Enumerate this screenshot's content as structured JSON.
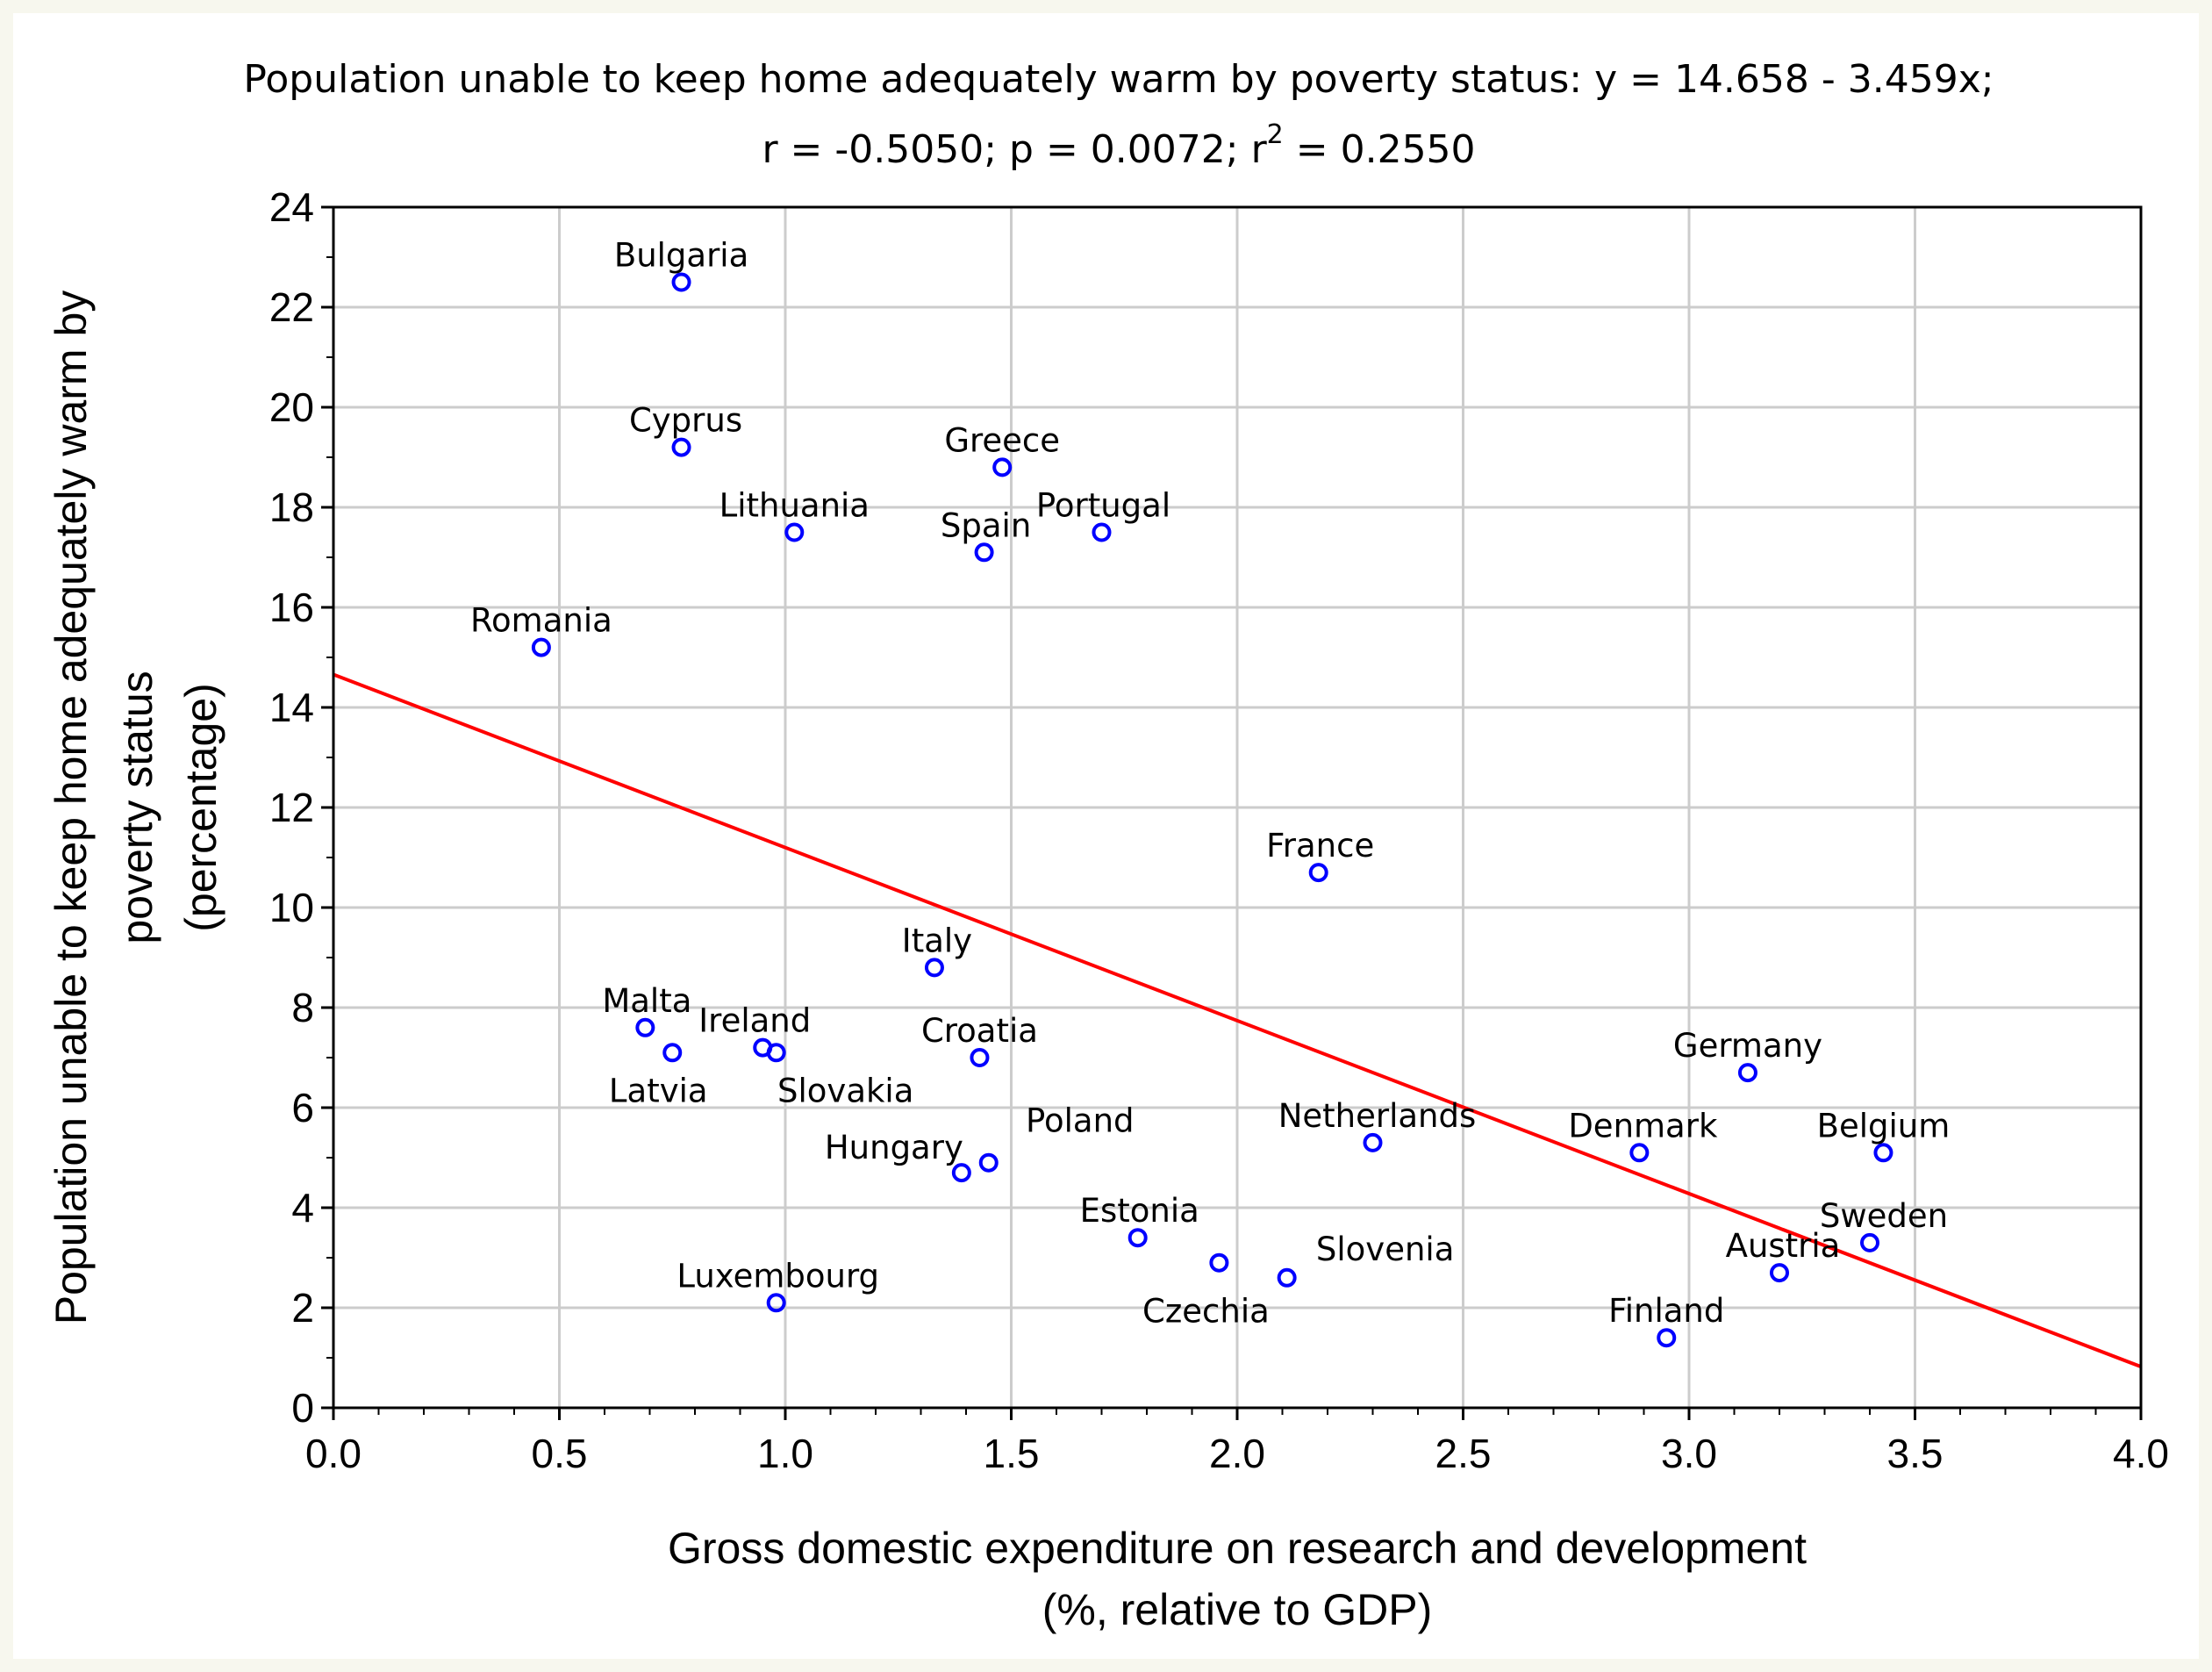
{
  "chart_data": {
    "type": "scatter",
    "title_line1": "Population unable to keep home adequately warm by poverty status:    y = 14.658 - 3.459x;",
    "title_line2_prefix": "r = -0.5050; p = 0.0072; r",
    "title_line2_sup": "2",
    "title_line2_suffix": " = 0.2550",
    "xlabel_line1": "Gross domestic expenditure on research and development",
    "xlabel_line2": "(%, relative to GDP)",
    "ylabel_line1": "Population unable to keep home adequately warm by",
    "ylabel_line2": "poverty status",
    "ylabel_line3": "(percentage)",
    "xlim": [
      0.0,
      4.0
    ],
    "ylim": [
      0,
      24
    ],
    "x_ticks": [
      "0.0",
      "0.5",
      "1.0",
      "1.5",
      "2.0",
      "2.5",
      "3.0",
      "3.5",
      "4.0"
    ],
    "y_ticks": [
      "0",
      "2",
      "4",
      "6",
      "8",
      "10",
      "12",
      "14",
      "16",
      "18",
      "20",
      "22",
      "24"
    ],
    "grid": true,
    "regression": {
      "intercept": 14.658,
      "slope": -3.459
    },
    "marker_color": "#0000ff",
    "line_color": "#ff0000",
    "points": [
      {
        "label": "Bulgaria",
        "x": 0.77,
        "y": 22.5
      },
      {
        "label": "Cyprus",
        "x": 0.77,
        "y": 19.2
      },
      {
        "label": "Greece",
        "x": 1.48,
        "y": 18.8
      },
      {
        "label": "Lithuania",
        "x": 1.02,
        "y": 17.5
      },
      {
        "label": "Spain",
        "x": 1.44,
        "y": 17.1
      },
      {
        "label": "Portugal",
        "x": 1.7,
        "y": 17.5
      },
      {
        "label": "Romania",
        "x": 0.46,
        "y": 15.2
      },
      {
        "label": "France",
        "x": 2.18,
        "y": 10.7
      },
      {
        "label": "Italy",
        "x": 1.33,
        "y": 8.8
      },
      {
        "label": "Malta",
        "x": 0.69,
        "y": 7.6
      },
      {
        "label": "Latvia",
        "x": 0.75,
        "y": 7.1
      },
      {
        "label": "Ireland",
        "x": 0.95,
        "y": 7.2
      },
      {
        "label": "Slovakia",
        "x": 0.98,
        "y": 7.1
      },
      {
        "label": "Croatia",
        "x": 1.43,
        "y": 7.0
      },
      {
        "label": "Germany",
        "x": 3.13,
        "y": 6.7
      },
      {
        "label": "Poland",
        "x": 1.45,
        "y": 4.9
      },
      {
        "label": "Hungary",
        "x": 1.39,
        "y": 4.7
      },
      {
        "label": "Netherlands",
        "x": 2.3,
        "y": 5.3
      },
      {
        "label": "Denmark",
        "x": 2.89,
        "y": 5.1
      },
      {
        "label": "Belgium",
        "x": 3.43,
        "y": 5.1
      },
      {
        "label": "Estonia",
        "x": 1.78,
        "y": 3.4
      },
      {
        "label": "Czechia",
        "x": 1.96,
        "y": 2.9
      },
      {
        "label": "Slovenia",
        "x": 2.11,
        "y": 2.6
      },
      {
        "label": "Sweden",
        "x": 3.4,
        "y": 3.3
      },
      {
        "label": "Austria",
        "x": 3.2,
        "y": 2.7
      },
      {
        "label": "Luxembourg",
        "x": 0.98,
        "y": 2.1
      },
      {
        "label": "Finland",
        "x": 2.95,
        "y": 1.4
      }
    ]
  }
}
